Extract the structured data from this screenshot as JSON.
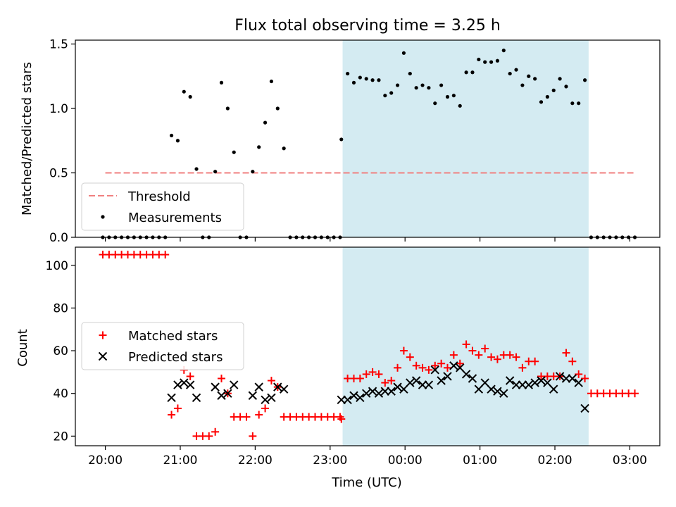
{
  "chart_data": [
    {
      "type": "scatter",
      "title": "Flux total observing time = 3.25 h",
      "ylabel": "Matched/Predicted stars",
      "xlabel": "",
      "ylim": [
        0,
        1.53
      ],
      "yticks": [
        "0.0",
        "0.5",
        "1.0",
        "1.5"
      ],
      "grid": false,
      "legend_placement": "lower-left",
      "shaded_interval": {
        "start": "23:10",
        "end": "02:27",
        "color": "#add8e6"
      },
      "threshold": {
        "name": "Threshold",
        "y": 0.5,
        "x_start": "20:00",
        "x_end": "03:05",
        "color": "#f08080"
      },
      "series": [
        {
          "name": "Measurements",
          "color": "#000000",
          "marker": "dot",
          "points": [
            [
              "19:58",
              0.0
            ],
            [
              "20:03",
              0.0
            ],
            [
              "20:08",
              0.0
            ],
            [
              "20:13",
              0.0
            ],
            [
              "20:18",
              0.0
            ],
            [
              "20:23",
              0.0
            ],
            [
              "20:28",
              0.0
            ],
            [
              "20:33",
              0.0
            ],
            [
              "20:38",
              0.0
            ],
            [
              "20:43",
              0.0
            ],
            [
              "20:48",
              0.0
            ],
            [
              "20:53",
              0.79
            ],
            [
              "20:58",
              0.75
            ],
            [
              "21:03",
              1.13
            ],
            [
              "21:08",
              1.09
            ],
            [
              "21:13",
              0.53
            ],
            [
              "21:18",
              0.0
            ],
            [
              "21:23",
              0.0
            ],
            [
              "21:28",
              0.51
            ],
            [
              "21:33",
              1.2
            ],
            [
              "21:38",
              1.0
            ],
            [
              "21:43",
              0.66
            ],
            [
              "21:48",
              0.0
            ],
            [
              "21:53",
              0.0
            ],
            [
              "21:58",
              0.51
            ],
            [
              "22:03",
              0.7
            ],
            [
              "22:08",
              0.89
            ],
            [
              "22:13",
              1.21
            ],
            [
              "22:18",
              1.0
            ],
            [
              "22:23",
              0.69
            ],
            [
              "22:28",
              0.0
            ],
            [
              "22:33",
              0.0
            ],
            [
              "22:38",
              0.0
            ],
            [
              "22:43",
              0.0
            ],
            [
              "22:48",
              0.0
            ],
            [
              "22:53",
              0.0
            ],
            [
              "22:58",
              0.0
            ],
            [
              "23:03",
              0.0
            ],
            [
              "23:08",
              0.0
            ],
            [
              "23:09",
              0.76
            ],
            [
              "23:14",
              1.27
            ],
            [
              "23:19",
              1.2
            ],
            [
              "23:24",
              1.24
            ],
            [
              "23:29",
              1.23
            ],
            [
              "23:34",
              1.22
            ],
            [
              "23:39",
              1.22
            ],
            [
              "23:44",
              1.1
            ],
            [
              "23:49",
              1.12
            ],
            [
              "23:54",
              1.18
            ],
            [
              "23:59",
              1.43
            ],
            [
              "00:04",
              1.27
            ],
            [
              "00:09",
              1.16
            ],
            [
              "00:14",
              1.18
            ],
            [
              "00:19",
              1.16
            ],
            [
              "00:24",
              1.04
            ],
            [
              "00:29",
              1.18
            ],
            [
              "00:34",
              1.09
            ],
            [
              "00:39",
              1.1
            ],
            [
              "00:44",
              1.02
            ],
            [
              "00:49",
              1.28
            ],
            [
              "00:54",
              1.28
            ],
            [
              "00:59",
              1.38
            ],
            [
              "01:04",
              1.36
            ],
            [
              "01:09",
              1.36
            ],
            [
              "01:14",
              1.37
            ],
            [
              "01:19",
              1.45
            ],
            [
              "01:24",
              1.27
            ],
            [
              "01:29",
              1.3
            ],
            [
              "01:34",
              1.18
            ],
            [
              "01:39",
              1.25
            ],
            [
              "01:44",
              1.23
            ],
            [
              "01:49",
              1.05
            ],
            [
              "01:54",
              1.09
            ],
            [
              "01:59",
              1.14
            ],
            [
              "02:04",
              1.23
            ],
            [
              "02:09",
              1.17
            ],
            [
              "02:14",
              1.04
            ],
            [
              "02:19",
              1.04
            ],
            [
              "02:24",
              1.22
            ],
            [
              "02:29",
              0.0
            ],
            [
              "02:34",
              0.0
            ],
            [
              "02:39",
              0.0
            ],
            [
              "02:44",
              0.0
            ],
            [
              "02:49",
              0.0
            ],
            [
              "02:54",
              0.0
            ],
            [
              "02:59",
              0.0
            ],
            [
              "03:04",
              0.0
            ]
          ]
        }
      ]
    },
    {
      "type": "scatter",
      "title": "",
      "ylabel": "Count",
      "xlabel": "Time (UTC)",
      "ylim": [
        15.5,
        108.5
      ],
      "yticks": [
        "20",
        "40",
        "60",
        "80",
        "100"
      ],
      "xticks": [
        "20:00",
        "21:00",
        "22:00",
        "23:00",
        "00:00",
        "01:00",
        "02:00",
        "03:00"
      ],
      "grid": false,
      "legend_placement": "center-left",
      "shaded_interval": {
        "start": "23:10",
        "end": "02:27",
        "color": "#add8e6"
      },
      "series": [
        {
          "name": "Matched stars",
          "color": "#ff0000",
          "marker": "plus",
          "points": [
            [
              "19:58",
              105
            ],
            [
              "20:03",
              105
            ],
            [
              "20:08",
              105
            ],
            [
              "20:13",
              105
            ],
            [
              "20:18",
              105
            ],
            [
              "20:23",
              105
            ],
            [
              "20:28",
              105
            ],
            [
              "20:33",
              105
            ],
            [
              "20:38",
              105
            ],
            [
              "20:43",
              105
            ],
            [
              "20:48",
              105
            ],
            [
              "20:53",
              30
            ],
            [
              "20:58",
              33
            ],
            [
              "21:03",
              51
            ],
            [
              "21:08",
              48
            ],
            [
              "21:13",
              20
            ],
            [
              "21:18",
              20
            ],
            [
              "21:23",
              20
            ],
            [
              "21:28",
              22
            ],
            [
              "21:33",
              47
            ],
            [
              "21:38",
              40
            ],
            [
              "21:43",
              29
            ],
            [
              "21:48",
              29
            ],
            [
              "21:53",
              29
            ],
            [
              "21:58",
              20
            ],
            [
              "22:03",
              30
            ],
            [
              "22:08",
              33
            ],
            [
              "22:13",
              46
            ],
            [
              "22:18",
              43
            ],
            [
              "22:23",
              29
            ],
            [
              "22:28",
              29
            ],
            [
              "22:33",
              29
            ],
            [
              "22:38",
              29
            ],
            [
              "22:43",
              29
            ],
            [
              "22:48",
              29
            ],
            [
              "22:53",
              29
            ],
            [
              "22:58",
              29
            ],
            [
              "23:03",
              29
            ],
            [
              "23:08",
              29
            ],
            [
              "23:09",
              28
            ],
            [
              "23:14",
              47
            ],
            [
              "23:19",
              47
            ],
            [
              "23:24",
              47
            ],
            [
              "23:29",
              49
            ],
            [
              "23:34",
              50
            ],
            [
              "23:39",
              49
            ],
            [
              "23:44",
              45
            ],
            [
              "23:49",
              46
            ],
            [
              "23:54",
              52
            ],
            [
              "23:59",
              60
            ],
            [
              "00:04",
              57
            ],
            [
              "00:09",
              53
            ],
            [
              "00:14",
              52
            ],
            [
              "00:19",
              51
            ],
            [
              "00:24",
              53
            ],
            [
              "00:29",
              54
            ],
            [
              "00:34",
              52
            ],
            [
              "00:39",
              58
            ],
            [
              "00:44",
              54
            ],
            [
              "00:49",
              63
            ],
            [
              "00:54",
              60
            ],
            [
              "00:59",
              58
            ],
            [
              "01:04",
              61
            ],
            [
              "01:09",
              57
            ],
            [
              "01:14",
              56
            ],
            [
              "01:19",
              58
            ],
            [
              "01:24",
              58
            ],
            [
              "01:29",
              57
            ],
            [
              "01:34",
              52
            ],
            [
              "01:39",
              55
            ],
            [
              "01:44",
              55
            ],
            [
              "01:49",
              48
            ],
            [
              "01:54",
              48
            ],
            [
              "01:59",
              48
            ],
            [
              "02:04",
              48
            ],
            [
              "02:09",
              59
            ],
            [
              "02:14",
              55
            ],
            [
              "02:19",
              49
            ],
            [
              "02:24",
              47
            ],
            [
              "02:29",
              40
            ],
            [
              "02:34",
              40
            ],
            [
              "02:39",
              40
            ],
            [
              "02:44",
              40
            ],
            [
              "02:49",
              40
            ],
            [
              "02:54",
              40
            ],
            [
              "02:59",
              40
            ],
            [
              "03:04",
              40
            ]
          ]
        },
        {
          "name": "Predicted stars",
          "color": "#000000",
          "marker": "x",
          "points": [
            [
              "20:53",
              38
            ],
            [
              "20:58",
              44
            ],
            [
              "21:03",
              45
            ],
            [
              "21:08",
              44
            ],
            [
              "21:13",
              38
            ],
            [
              "21:28",
              43
            ],
            [
              "21:33",
              39
            ],
            [
              "21:38",
              40
            ],
            [
              "21:43",
              44
            ],
            [
              "21:58",
              39
            ],
            [
              "22:03",
              43
            ],
            [
              "22:08",
              37
            ],
            [
              "22:13",
              38
            ],
            [
              "22:18",
              43
            ],
            [
              "22:23",
              42
            ],
            [
              "23:09",
              37
            ],
            [
              "23:14",
              37
            ],
            [
              "23:19",
              39
            ],
            [
              "23:24",
              38
            ],
            [
              "23:29",
              40
            ],
            [
              "23:34",
              41
            ],
            [
              "23:39",
              40
            ],
            [
              "23:44",
              41
            ],
            [
              "23:49",
              41
            ],
            [
              "23:54",
              43
            ],
            [
              "23:59",
              42
            ],
            [
              "00:04",
              45
            ],
            [
              "00:09",
              46
            ],
            [
              "00:14",
              44
            ],
            [
              "00:19",
              44
            ],
            [
              "00:24",
              51
            ],
            [
              "00:29",
              46
            ],
            [
              "00:34",
              48
            ],
            [
              "00:39",
              53
            ],
            [
              "00:44",
              52
            ],
            [
              "00:49",
              49
            ],
            [
              "00:54",
              47
            ],
            [
              "00:59",
              42
            ],
            [
              "01:04",
              45
            ],
            [
              "01:09",
              42
            ],
            [
              "01:14",
              41
            ],
            [
              "01:19",
              40
            ],
            [
              "01:24",
              46
            ],
            [
              "01:29",
              44
            ],
            [
              "01:34",
              44
            ],
            [
              "01:39",
              44
            ],
            [
              "01:44",
              45
            ],
            [
              "01:49",
              46
            ],
            [
              "01:54",
              45
            ],
            [
              "01:59",
              42
            ],
            [
              "02:04",
              48
            ],
            [
              "02:09",
              47
            ],
            [
              "02:14",
              47
            ],
            [
              "02:19",
              45
            ],
            [
              "02:24",
              33
            ]
          ]
        }
      ]
    }
  ]
}
